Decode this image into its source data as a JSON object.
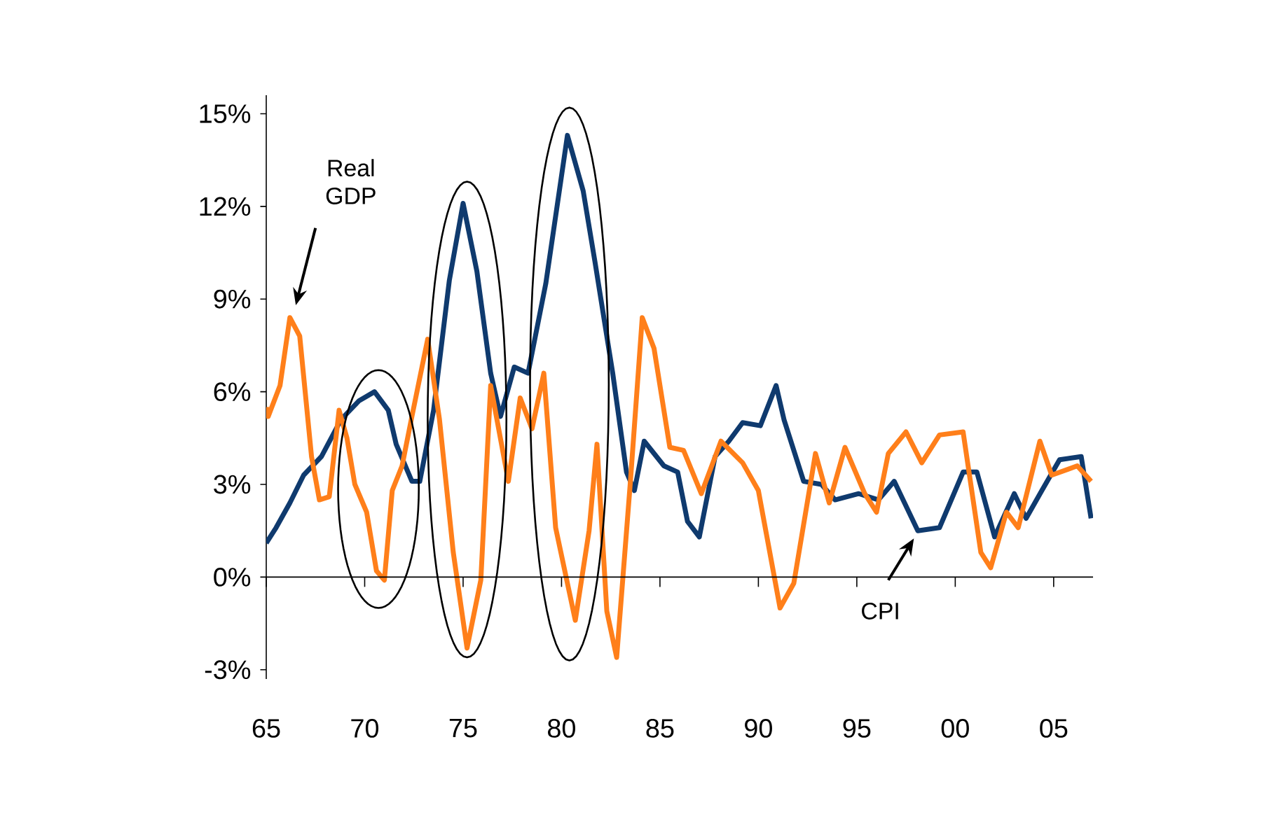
{
  "chart_data": {
    "type": "line",
    "xlim": [
      1965,
      2007
    ],
    "ylim": [
      -3.3,
      15.6
    ],
    "xticks": [
      {
        "value": 1965,
        "label": "65"
      },
      {
        "value": 1970,
        "label": "70"
      },
      {
        "value": 1975,
        "label": "75"
      },
      {
        "value": 1980,
        "label": "80"
      },
      {
        "value": 1985,
        "label": "85"
      },
      {
        "value": 1990,
        "label": "90"
      },
      {
        "value": 1995,
        "label": "95"
      },
      {
        "value": 2000,
        "label": "00"
      },
      {
        "value": 2005,
        "label": "05"
      }
    ],
    "yticks": [
      {
        "value": -3,
        "label": "-3%"
      },
      {
        "value": 0,
        "label": "0%"
      },
      {
        "value": 3,
        "label": "3%"
      },
      {
        "value": 6,
        "label": "6%"
      },
      {
        "value": 9,
        "label": "9%"
      },
      {
        "value": 12,
        "label": "12%"
      },
      {
        "value": 15,
        "label": "15%"
      }
    ],
    "marker": "none",
    "line_style": "solid",
    "series": [
      {
        "color": "#0f3a6e",
        "x": [
          1965.0,
          1965.5,
          1966.2,
          1966.9,
          1967.8,
          1968.8,
          1969.7,
          1970.5,
          1971.2,
          1971.6,
          1972.4,
          1972.8,
          1973.5,
          1974.3,
          1975.0,
          1975.7,
          1976.4,
          1976.9,
          1977.6,
          1978.3,
          1979.2,
          1980.3,
          1981.1,
          1981.7,
          1982.6,
          1983.3,
          1983.7,
          1984.2,
          1985.2,
          1985.9,
          1986.4,
          1987.0,
          1987.8,
          1988.5,
          1989.2,
          1990.1,
          1990.9,
          1991.3,
          1992.3,
          1993.2,
          1993.9,
          1995.1,
          1996.1,
          1996.9,
          1998.1,
          1999.2,
          2000.4,
          2001.1,
          2002.0,
          2003.0,
          2003.6,
          2004.4,
          2005.3,
          2006.4,
          2006.9
        ],
        "values": [
          1.1,
          1.6,
          2.4,
          3.3,
          3.9,
          5.1,
          5.7,
          6.0,
          5.4,
          4.3,
          3.1,
          3.1,
          5.4,
          9.6,
          12.1,
          9.9,
          6.6,
          5.2,
          6.8,
          6.6,
          9.5,
          14.3,
          12.5,
          10.2,
          6.6,
          3.4,
          2.8,
          4.4,
          3.6,
          3.4,
          1.8,
          1.3,
          3.9,
          4.4,
          5.0,
          4.9,
          6.2,
          5.1,
          3.1,
          3.0,
          2.5,
          2.7,
          2.5,
          3.1,
          1.5,
          1.6,
          3.4,
          3.4,
          1.3,
          2.7,
          1.9,
          2.8,
          3.8,
          3.9,
          1.9
        ]
      },
      {
        "color": "#ff7f1a",
        "x": [
          1965.0,
          1965.1,
          1965.7,
          1966.2,
          1966.7,
          1967.3,
          1967.7,
          1968.2,
          1968.7,
          1969.1,
          1969.5,
          1970.1,
          1970.6,
          1971.0,
          1971.4,
          1971.9,
          1972.4,
          1973.2,
          1973.8,
          1974.5,
          1975.2,
          1975.9,
          1976.4,
          1977.3,
          1977.9,
          1978.5,
          1979.1,
          1979.7,
          1980.7,
          1981.4,
          1981.8,
          1982.3,
          1982.8,
          1983.5,
          1984.1,
          1984.7,
          1985.5,
          1986.2,
          1987.1,
          1988.1,
          1989.2,
          1990.0,
          1991.1,
          1991.8,
          1992.9,
          1993.6,
          1994.4,
          1995.4,
          1996.0,
          1996.6,
          1997.5,
          1998.3,
          1999.2,
          2000.4,
          2001.3,
          2001.8,
          2002.6,
          2003.2,
          2004.3,
          2004.9,
          2006.2,
          2006.9
        ],
        "values": [
          5.5,
          5.2,
          6.2,
          8.4,
          7.8,
          3.9,
          2.5,
          2.6,
          5.4,
          4.5,
          3.0,
          2.1,
          0.2,
          -0.1,
          2.8,
          3.6,
          5.2,
          7.7,
          5.1,
          0.8,
          -2.3,
          -0.1,
          6.2,
          3.1,
          5.8,
          4.8,
          6.6,
          1.6,
          -1.4,
          1.5,
          4.3,
          -1.1,
          -2.6,
          3.1,
          8.4,
          7.4,
          4.2,
          4.1,
          2.7,
          4.4,
          3.7,
          2.8,
          -1.0,
          -0.2,
          4.0,
          2.4,
          4.2,
          2.7,
          2.1,
          4.0,
          4.7,
          3.7,
          4.6,
          4.7,
          0.8,
          0.3,
          2.1,
          1.6,
          4.4,
          3.3,
          3.6,
          3.1
        ]
      }
    ],
    "annotations": [
      "Real GDP",
      "CPI"
    ]
  }
}
